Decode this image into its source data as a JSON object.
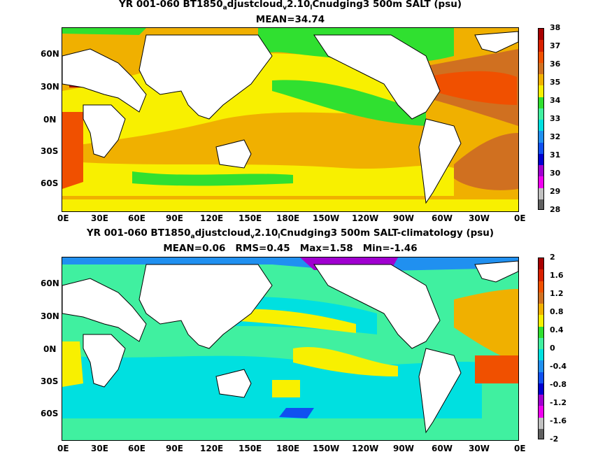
{
  "panels": [
    {
      "title_pre": "YR 001-060 BT1850",
      "title_sub1": "a",
      "title_mid": "djustcloud",
      "title_sub2": "v",
      "title_mid2": "2.10",
      "title_sub3": "l",
      "title_post": "Cnudging3 500m SALT (psu)",
      "stats": "MEAN=34.74",
      "colorbar_labels": [
        "38",
        "37",
        "36",
        "35",
        "34",
        "33",
        "32",
        "31",
        "30",
        "29",
        "28"
      ],
      "colors": [
        "#a80000",
        "#d82000",
        "#f05000",
        "#d07020",
        "#f0b000",
        "#f8f000",
        "#30e030",
        "#40f0a0",
        "#00e0e0",
        "#2090f0",
        "#1050f0",
        "#0000d0",
        "#a000d0",
        "#f000f0",
        "#c0c0c0",
        "#606060"
      ]
    },
    {
      "title_pre": "YR 001-060 BT1850",
      "title_sub1": "a",
      "title_mid": "djustcloud",
      "title_sub2": "v",
      "title_mid2": "2.10",
      "title_sub3": "l",
      "title_post": "Cnudging3 500m SALT-climatology (psu)",
      "stats": "MEAN=0.06   RMS=0.45   Max=1.58   Min=-1.46",
      "colorbar_labels": [
        "2",
        "1.6",
        "1.2",
        "0.8",
        "0.4",
        "0",
        "-0.4",
        "-0.8",
        "-1.2",
        "-1.6",
        "-2"
      ],
      "colors": [
        "#a80000",
        "#d82000",
        "#f05000",
        "#d07020",
        "#f0b000",
        "#f8f000",
        "#30e030",
        "#40f0a0",
        "#00e0e0",
        "#2090f0",
        "#1050f0",
        "#0000d0",
        "#a000d0",
        "#f000f0",
        "#c0c0c0",
        "#606060"
      ]
    }
  ],
  "lat_labels": [
    "60N",
    "30N",
    "0N",
    "30S",
    "60S"
  ],
  "lon_labels": [
    "0E",
    "30E",
    "60E",
    "90E",
    "120E",
    "150E",
    "180E",
    "150W",
    "120W",
    "90W",
    "60W",
    "30W",
    "0E"
  ]
}
